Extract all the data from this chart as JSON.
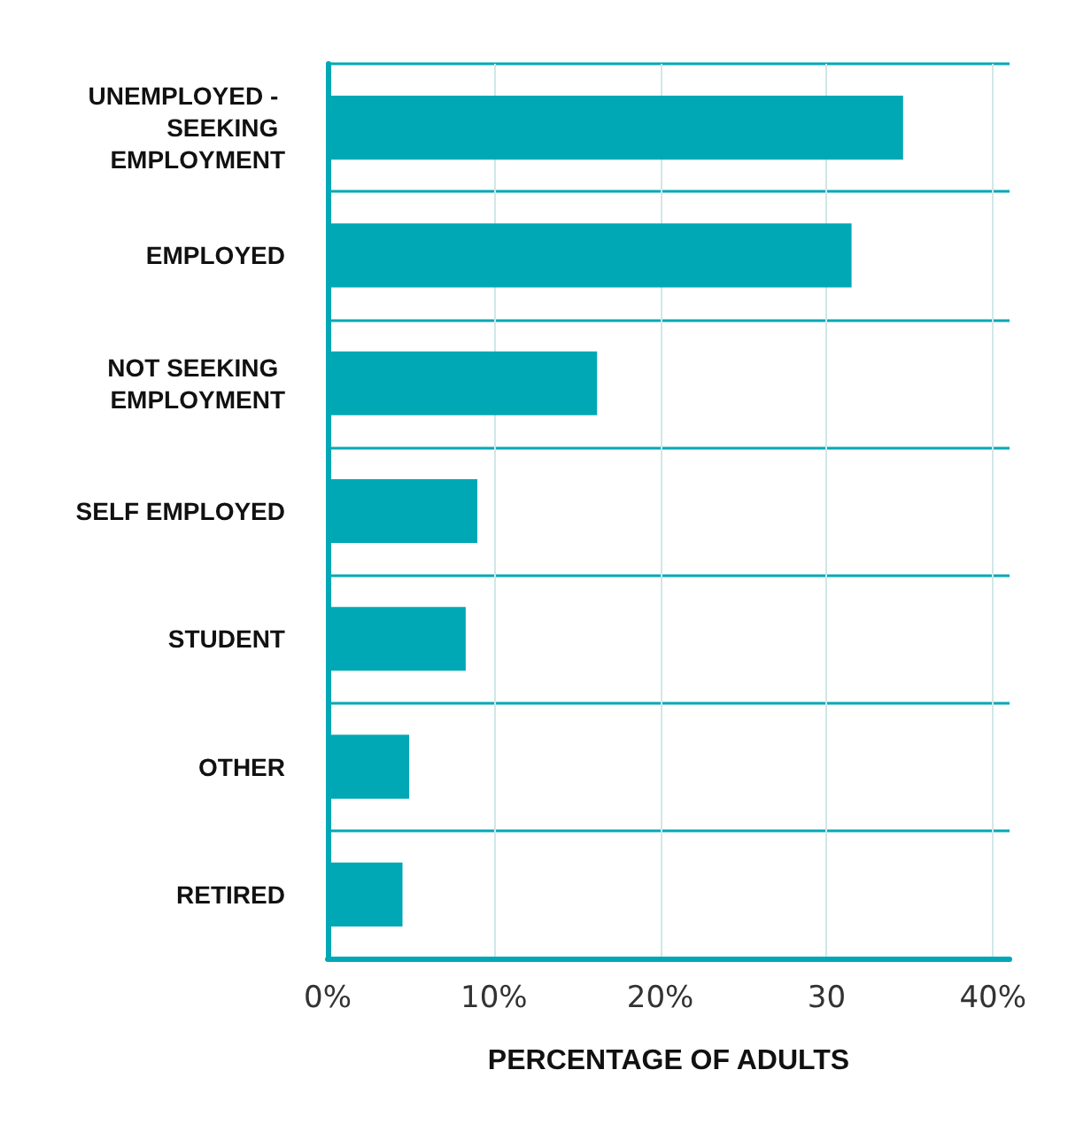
{
  "chart_data": {
    "type": "bar",
    "orientation": "horizontal",
    "xlabel": "PERCENTAGE OF ADULTS",
    "categories": [
      "UNEMPLOYED - SEEKING EMPLOYMENT",
      "EMPLOYED",
      "NOT SEEKING EMPLOYMENT",
      "SELF EMPLOYED",
      "STUDENT",
      "OTHER",
      "RETIRED"
    ],
    "values": [
      34.6,
      31.5,
      16.2,
      9.0,
      8.3,
      4.9,
      4.5
    ],
    "color": "#00a8b5",
    "xlim": [
      0,
      41
    ],
    "xticks": [
      {
        "value": 0,
        "label": "0%"
      },
      {
        "value": 10,
        "label": "10%"
      },
      {
        "value": 20,
        "label": "20%"
      },
      {
        "value": 30,
        "label": "30"
      },
      {
        "value": 40,
        "label": "40%"
      }
    ],
    "grid": true
  }
}
